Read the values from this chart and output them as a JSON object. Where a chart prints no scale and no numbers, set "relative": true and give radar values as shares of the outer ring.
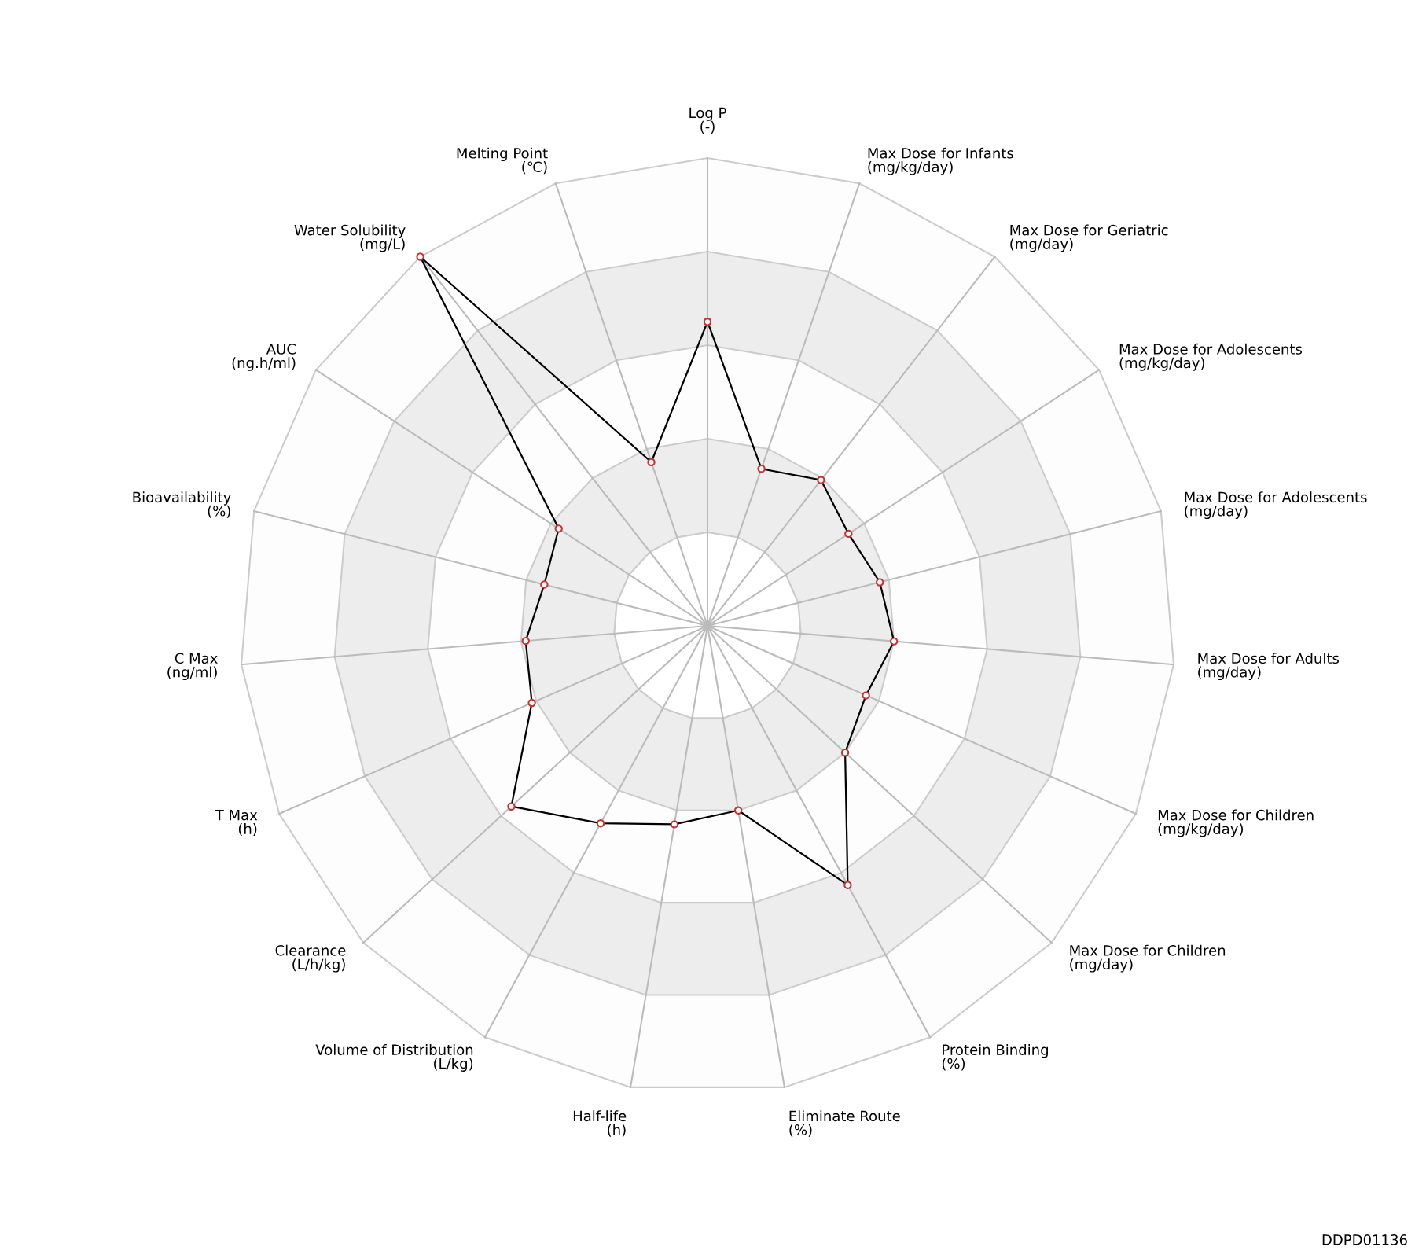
{
  "chart_data": {
    "type": "radar",
    "relative": true,
    "grid": true,
    "marker": "circle",
    "line_style": "solid",
    "categories": [
      "Log P\n(-)",
      "Max Dose for Infants\n(mg/kg/day)",
      "Max Dose for Geriatric\n(mg/day)",
      "Max Dose for Adolescents\n(mg/kg/day)",
      "Max Dose for Adolescents\n(mg/day)",
      "Max Dose for Adults\n(mg/day)",
      "Max Dose for Children\n(mg/kg/day)",
      "Max Dose for Children\n(mg/day)",
      "Protein Binding\n(%)",
      "Eliminate Route\n(%)",
      "Half-life\n(h)",
      "Volume of Distribution\n(L/kg)",
      "Clearance\n(L/h/kg)",
      "T Max\n(h)",
      "C Max\n(ng/ml)",
      "Bioavailability\n(%)",
      "AUC\n(ng.h/ml)",
      "Water Solubility\n(mg/L)",
      "Melting Point\n(℃)"
    ],
    "series": [
      {
        "color": "#000000",
        "values": [
          0.65,
          0.355,
          0.395,
          0.36,
          0.38,
          0.4,
          0.37,
          0.4,
          0.63,
          0.4,
          0.43,
          0.48,
          0.57,
          0.41,
          0.39,
          0.36,
          0.38,
          1.0,
          0.37
        ]
      }
    ],
    "annotations": [
      "DDPD01136"
    ]
  }
}
